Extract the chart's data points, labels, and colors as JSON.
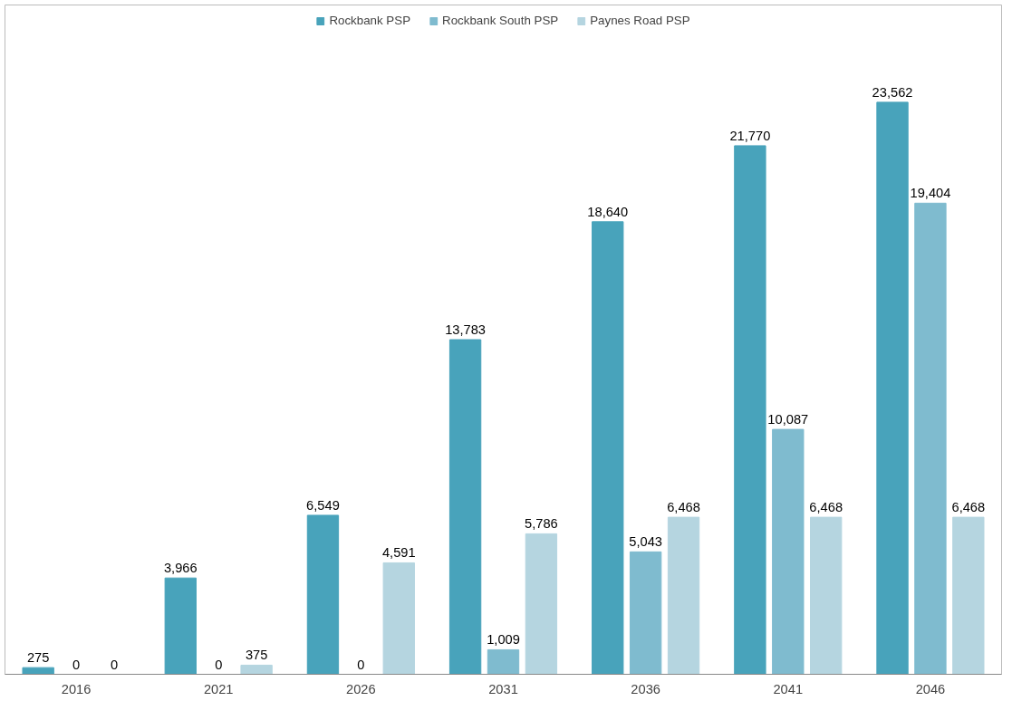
{
  "chart_data": {
    "type": "bar",
    "categories": [
      "2016",
      "2021",
      "2026",
      "2031",
      "2036",
      "2041",
      "2046"
    ],
    "series": [
      {
        "name": "Rockbank PSP",
        "color": "#48a3bb",
        "values": [
          275,
          3966,
          6549,
          13783,
          18640,
          21770,
          23562
        ],
        "value_labels": [
          "275",
          "3,966",
          "6,549",
          "13,783",
          "18,640",
          "21,770",
          "23,562"
        ]
      },
      {
        "name": "Rockbank South PSP",
        "color": "#7fbbcf",
        "values": [
          0,
          0,
          0,
          1009,
          5043,
          10087,
          19404
        ],
        "value_labels": [
          "0",
          "0",
          "0",
          "1,009",
          "5,043",
          "10,087",
          "19,404"
        ]
      },
      {
        "name": "Paynes Road PSP",
        "color": "#b5d5e0",
        "values": [
          0,
          375,
          4591,
          5786,
          6468,
          6468,
          6468
        ],
        "value_labels": [
          "0",
          "375",
          "4,591",
          "5,786",
          "6,468",
          "6,468",
          "6,468"
        ]
      }
    ],
    "legend": "top",
    "grid": false
  }
}
